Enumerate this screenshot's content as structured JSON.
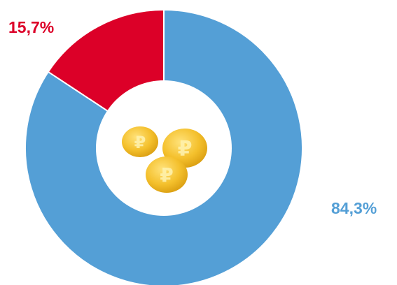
{
  "chart_data": {
    "type": "pie",
    "variant": "donut",
    "start_angle": "12 o'clock, clockwise",
    "categories": [
      "",
      ""
    ],
    "values": [
      84.3,
      15.7
    ],
    "labels": [
      "84,3%",
      "15,7%"
    ],
    "colors": [
      "#549fd6",
      "#dc0028"
    ],
    "center_icon": "ruble-coins-icon",
    "center_icon_color": "#f2bf30"
  }
}
